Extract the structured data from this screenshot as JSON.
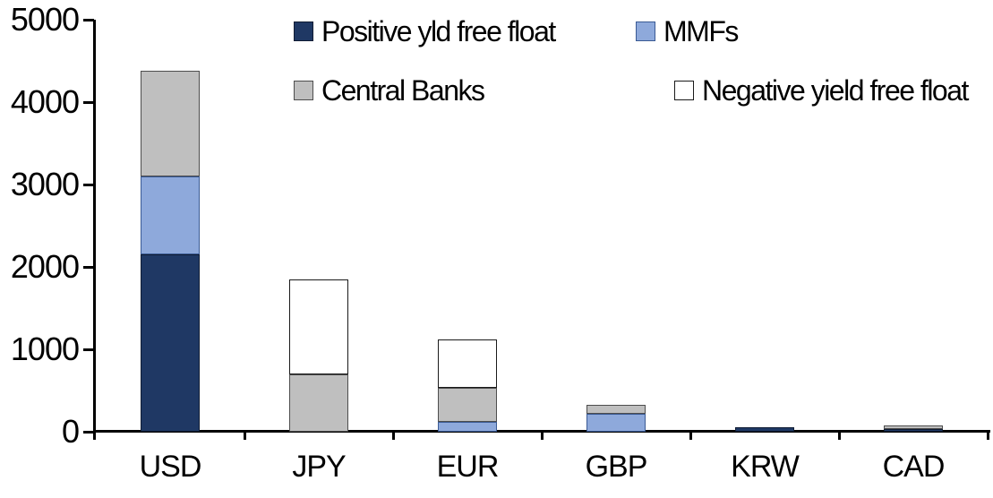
{
  "chart_data": {
    "type": "bar",
    "stacked": true,
    "title": "",
    "xlabel": "",
    "ylabel": "",
    "categories": [
      "USD",
      "JPY",
      "EUR",
      "GBP",
      "KRW",
      "CAD"
    ],
    "series": [
      {
        "name": "Positive yld free float",
        "color": "#1F3864",
        "border_color": "#101C33",
        "values": [
          2150,
          0,
          0,
          0,
          50,
          35
        ]
      },
      {
        "name": "MMFs",
        "color": "#8EA9DB",
        "border_color": "#3A5A94",
        "values": [
          950,
          0,
          120,
          220,
          0,
          0
        ]
      },
      {
        "name": "Central Banks",
        "color": "#BFBFBF",
        "border_color": "#4D4D4D",
        "values": [
          1280,
          700,
          410,
          110,
          0,
          40
        ]
      },
      {
        "name": "Negative yield free float",
        "color": "#FFFFFF",
        "border_color": "#1A1A1A",
        "values": [
          0,
          1150,
          590,
          0,
          0,
          0
        ]
      }
    ],
    "totals_by_category": [
      4380,
      1850,
      1120,
      330,
      50,
      75
    ],
    "y_axis": {
      "min": 0,
      "max": 5000,
      "tick_step": 1000,
      "tick_labels": [
        "0",
        "1000",
        "2000",
        "3000",
        "4000",
        "5000"
      ]
    },
    "legend": {
      "position": "top",
      "rows": [
        [
          "Positive yld free float",
          "MMFs"
        ],
        [
          "Central Banks",
          "Negative yield free float"
        ]
      ]
    },
    "grid": false,
    "axis_color": "#000000",
    "background_color": "#FFFFFF"
  }
}
